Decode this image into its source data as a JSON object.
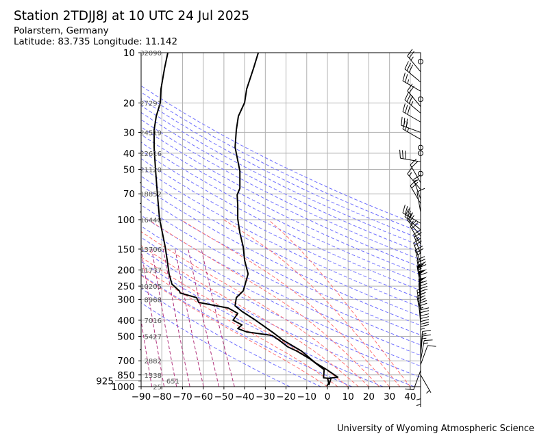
{
  "title": "Station 2TDJJ8J at 10 UTC 24 Jul 2025",
  "location": "Polarstern, Germany",
  "coordinates": "Latitude: 83.735 Longitude: 11.142",
  "footer": "University of Wyoming Atmospheric Science",
  "colors": {
    "profile": "#000000",
    "dry_adiabat": "#6f6fff",
    "moist_adiabat": "#ff6f6f",
    "mixing_ratio": "#b0307a",
    "grid": "#b0b0b0"
  },
  "chart_data": {
    "type": "line",
    "subtype": "skew-T log-p sounding (unskewed)",
    "xlabel": "",
    "ylabel": "",
    "xlim": [
      -90,
      45
    ],
    "ylim": [
      1000,
      10
    ],
    "y_scale": "log",
    "grid": true,
    "x_ticks": [
      -90,
      -80,
      -70,
      -60,
      -50,
      -40,
      -30,
      -20,
      -10,
      0,
      10,
      20,
      30,
      40
    ],
    "x_tick_labels": [
      "−90",
      "−80",
      "−70",
      "−60",
      "−50",
      "−40",
      "−30",
      "−20",
      "−10",
      "0",
      "10",
      "20",
      "30",
      "40"
    ],
    "pressure_ticks": [
      "10",
      "20",
      "30",
      "40",
      "50",
      "70",
      "100",
      "150",
      "200",
      "250",
      "300",
      "400",
      "500",
      "700",
      "850",
      "925",
      "1000"
    ],
    "minor_pressure_ticks": [
      60,
      80,
      90,
      600
    ],
    "height_labels": [
      {
        "p": 10,
        "label": "32090"
      },
      {
        "p": 20,
        "label": "27291"
      },
      {
        "p": 30,
        "label": "24519"
      },
      {
        "p": 40,
        "label": "22616"
      },
      {
        "p": 50,
        "label": "21120"
      },
      {
        "p": 70,
        "label": "18852"
      },
      {
        "p": 100,
        "label": "16440"
      },
      {
        "p": 150,
        "label": "13706"
      },
      {
        "p": 200,
        "label": "11737"
      },
      {
        "p": 250,
        "label": "10205"
      },
      {
        "p": 300,
        "label": "8968"
      },
      {
        "p": 400,
        "label": "7016"
      },
      {
        "p": 500,
        "label": "5427"
      },
      {
        "p": 700,
        "label": "2882"
      },
      {
        "p": 850,
        "label": "1338"
      },
      {
        "p": 925,
        "label": "651"
      },
      {
        "p": 1000,
        "label": "25"
      }
    ],
    "series": [
      {
        "name": "temperature",
        "pressure": [
          10,
          12.4,
          16.5,
          19.9,
          24,
          29,
          36.8,
          42.4,
          51.2,
          64.8,
          71.1,
          82,
          99,
          120,
          145,
          175,
          211,
          243,
          267,
          293,
          328,
          354,
          400,
          479,
          526,
          612,
          719,
          791,
          877,
          893,
          955,
          990
        ],
        "values": [
          -33.4,
          -35.7,
          -39.0,
          -40.0,
          -43.0,
          -44.0,
          -44.6,
          -43.6,
          -42.3,
          -42.3,
          -43.6,
          -43.3,
          -43.3,
          -42.3,
          -40.7,
          -40.0,
          -38.3,
          -39.7,
          -40.7,
          -44.0,
          -44.6,
          -41.3,
          -34.7,
          -25.8,
          -21.5,
          -12.5,
          -5.9,
          -0.3,
          5.0,
          0.1,
          0.7,
          -0.3
        ]
      },
      {
        "name": "dewpoint",
        "pressure": [
          10,
          12.4,
          16.5,
          19.9,
          24,
          29,
          36.8,
          42.4,
          51.2,
          71.1,
          99,
          120,
          145,
          175,
          211,
          243,
          267,
          275,
          293,
          313,
          338,
          364,
          400,
          427,
          449,
          470,
          493,
          526,
          578,
          612,
          685,
          791,
          885,
          893,
          981
        ],
        "values": [
          -77.1,
          -78.7,
          -80.4,
          -80.7,
          -82.7,
          -83.7,
          -83.7,
          -83.4,
          -83.0,
          -82.1,
          -81.1,
          -79.7,
          -78.4,
          -77.4,
          -76.5,
          -75.1,
          -71.5,
          -71.1,
          -63.2,
          -62.2,
          -47.9,
          -43.3,
          -45.6,
          -41.3,
          -43.3,
          -39.0,
          -26.8,
          -23.4,
          -19.1,
          -14.8,
          -8.2,
          -1.6,
          -1.9,
          1.7,
          0.7
        ]
      }
    ],
    "dry_adiabats_theta_K": [
      255,
      270,
      285,
      300,
      315,
      330,
      345,
      360,
      375,
      390,
      405,
      420,
      435,
      450,
      465,
      480,
      495,
      510,
      525,
      540,
      555,
      570,
      585,
      600
    ],
    "moist_adiabats_t0_C": [
      0,
      5,
      10,
      15,
      20,
      25,
      30,
      35,
      40
    ],
    "mixing_ratios_g_per_kg": [
      0.0003,
      0.0008,
      0.002,
      0.005,
      0.012,
      0.03,
      0.07
    ],
    "wind_barbs": {
      "units": "knots",
      "pressure": [
        11.3,
        13,
        15,
        17,
        19,
        21,
        23,
        26,
        30,
        33,
        37,
        40,
        45,
        53,
        60,
        66,
        75,
        80,
        90,
        105,
        115,
        125,
        140,
        160,
        180,
        200,
        230,
        250,
        270,
        300,
        320,
        350,
        380,
        420,
        460,
        500,
        540,
        580,
        620,
        660,
        700,
        740,
        800,
        850,
        925,
        1000
      ],
      "direction": [
        0,
        320,
        310,
        300,
        0,
        320,
        310,
        300,
        290,
        300,
        0,
        0,
        280,
        0,
        330,
        320,
        340,
        330,
        350,
        300,
        310,
        320,
        330,
        340,
        340,
        345,
        350,
        350,
        355,
        355,
        355,
        350,
        350,
        355,
        0,
        0,
        0,
        0,
        5,
        5,
        10,
        20,
        200,
        150,
        180,
        180
      ],
      "speed": [
        0,
        25,
        30,
        25,
        0,
        20,
        35,
        30,
        30,
        25,
        0,
        0,
        30,
        0,
        20,
        15,
        15,
        20,
        10,
        35,
        30,
        25,
        20,
        25,
        20,
        25,
        40,
        55,
        60,
        55,
        45,
        35,
        30,
        25,
        20,
        20,
        20,
        15,
        15,
        15,
        15,
        10,
        10,
        5,
        5,
        5
      ]
    }
  }
}
